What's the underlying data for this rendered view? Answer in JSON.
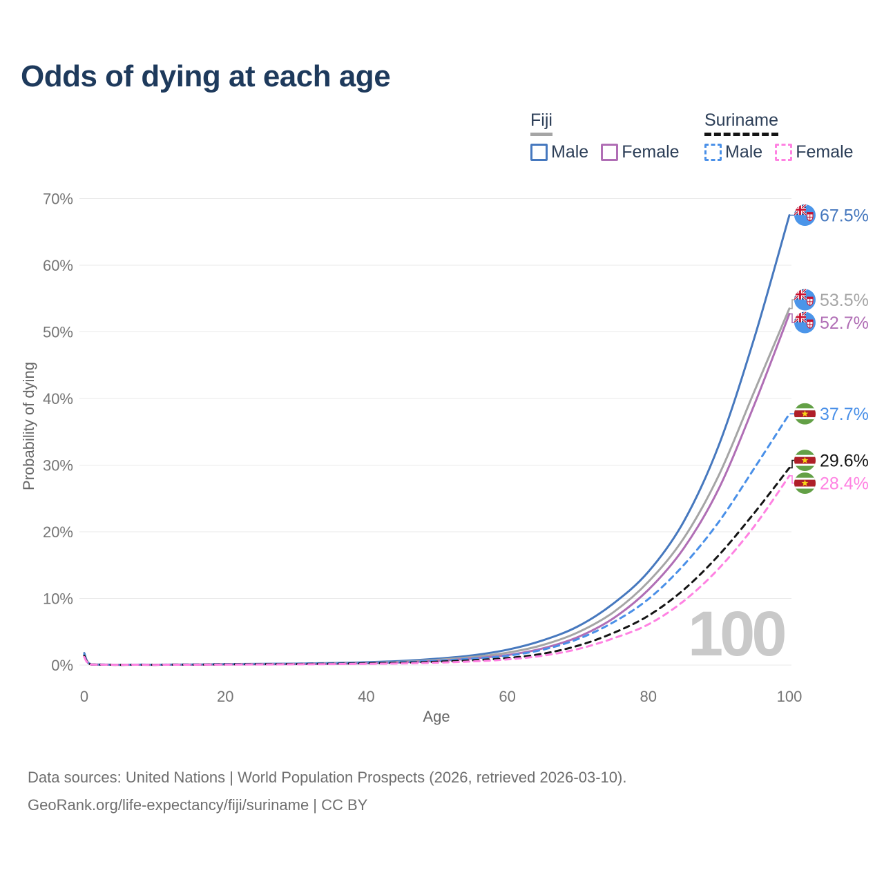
{
  "title": "Odds of dying at each age",
  "legend": {
    "groups": [
      {
        "name": "Fiji",
        "line_style": "solid",
        "line_color": "#A5A5A5",
        "items": [
          {
            "label": "Male",
            "color": "#4678BE",
            "style": "solid"
          },
          {
            "label": "Female",
            "color": "#B06EB5",
            "style": "solid"
          }
        ]
      },
      {
        "name": "Suriname",
        "line_style": "dashed",
        "line_color": "#141414",
        "items": [
          {
            "label": "Male",
            "color": "#4A90E8",
            "style": "dashed"
          },
          {
            "label": "Female",
            "color": "#FF82E2",
            "style": "dashed"
          }
        ]
      }
    ]
  },
  "axes": {
    "x_title": "Age",
    "y_title": "Probability of dying",
    "x_ticks": [
      {
        "value": 0,
        "label": "0"
      },
      {
        "value": 20,
        "label": "20"
      },
      {
        "value": 40,
        "label": "40"
      },
      {
        "value": 60,
        "label": "60"
      },
      {
        "value": 80,
        "label": "80"
      },
      {
        "value": 100,
        "label": "100"
      }
    ],
    "y_ticks": [
      {
        "value": 0,
        "label": "0%"
      },
      {
        "value": 10,
        "label": "10%"
      },
      {
        "value": 20,
        "label": "20%"
      },
      {
        "value": 30,
        "label": "30%"
      },
      {
        "value": 40,
        "label": "40%"
      },
      {
        "value": 50,
        "label": "50%"
      },
      {
        "value": 60,
        "label": "60%"
      },
      {
        "value": 70,
        "label": "70%"
      }
    ]
  },
  "watermark": "100",
  "footer": {
    "line1": "Data sources: United Nations | World Population Prospects (2026, retrieved 2026-03-10).",
    "line2": "GeoRank.org/life-expectancy/fiji/suriname | CC BY"
  },
  "chart_data": {
    "type": "line",
    "title": "Odds of dying at each age",
    "xlabel": "Age",
    "ylabel": "Probability of dying",
    "xlim": [
      0,
      100
    ],
    "ylim": [
      0,
      70
    ],
    "grid": "horizontal",
    "legend_position": "top-right",
    "series": [
      {
        "name": "Fiji Male",
        "country": "Fiji",
        "sex": "Male",
        "flag": "fiji",
        "color": "#4678BE",
        "dash": "solid",
        "end_label": "67.5%",
        "end_value": 67.5,
        "points": [
          [
            0,
            1.8
          ],
          [
            1,
            0.1
          ],
          [
            5,
            0.05
          ],
          [
            10,
            0.05
          ],
          [
            15,
            0.08
          ],
          [
            20,
            0.15
          ],
          [
            25,
            0.18
          ],
          [
            30,
            0.22
          ],
          [
            35,
            0.3
          ],
          [
            40,
            0.42
          ],
          [
            45,
            0.62
          ],
          [
            50,
            0.95
          ],
          [
            55,
            1.45
          ],
          [
            60,
            2.3
          ],
          [
            65,
            3.7
          ],
          [
            70,
            5.8
          ],
          [
            75,
            9.2
          ],
          [
            80,
            14.0
          ],
          [
            85,
            21.5
          ],
          [
            90,
            33.0
          ],
          [
            95,
            49.0
          ],
          [
            100,
            67.5
          ]
        ]
      },
      {
        "name": "Fiji Both sexes",
        "country": "Fiji",
        "sex": "Both",
        "flag": "fiji",
        "color": "#A5A5A5",
        "dash": "solid",
        "end_label": "53.5%",
        "end_value": 53.5,
        "points": [
          [
            0,
            1.6
          ],
          [
            1,
            0.09
          ],
          [
            5,
            0.04
          ],
          [
            10,
            0.04
          ],
          [
            15,
            0.07
          ],
          [
            20,
            0.12
          ],
          [
            25,
            0.15
          ],
          [
            30,
            0.18
          ],
          [
            35,
            0.24
          ],
          [
            40,
            0.34
          ],
          [
            45,
            0.5
          ],
          [
            50,
            0.78
          ],
          [
            55,
            1.2
          ],
          [
            60,
            1.85
          ],
          [
            65,
            3.0
          ],
          [
            70,
            4.9
          ],
          [
            75,
            7.9
          ],
          [
            80,
            12.5
          ],
          [
            85,
            19.0
          ],
          [
            90,
            28.5
          ],
          [
            95,
            41.0
          ],
          [
            100,
            53.5
          ]
        ]
      },
      {
        "name": "Fiji Female",
        "country": "Fiji",
        "sex": "Female",
        "flag": "fiji",
        "color": "#B06EB5",
        "dash": "solid",
        "end_label": "52.7%",
        "end_value": 52.7,
        "points": [
          [
            0,
            1.4
          ],
          [
            1,
            0.08
          ],
          [
            5,
            0.04
          ],
          [
            10,
            0.04
          ],
          [
            15,
            0.05
          ],
          [
            20,
            0.09
          ],
          [
            25,
            0.11
          ],
          [
            30,
            0.14
          ],
          [
            35,
            0.19
          ],
          [
            40,
            0.27
          ],
          [
            45,
            0.4
          ],
          [
            50,
            0.62
          ],
          [
            55,
            0.98
          ],
          [
            60,
            1.5
          ],
          [
            65,
            2.5
          ],
          [
            70,
            4.2
          ],
          [
            75,
            7.0
          ],
          [
            80,
            11.3
          ],
          [
            85,
            17.5
          ],
          [
            90,
            26.5
          ],
          [
            95,
            39.0
          ],
          [
            100,
            52.7
          ]
        ]
      },
      {
        "name": "Suriname Male",
        "country": "Suriname",
        "sex": "Male",
        "flag": "suriname",
        "color": "#4A90E8",
        "dash": "dashed",
        "end_label": "37.7%",
        "end_value": 37.7,
        "points": [
          [
            0,
            1.6
          ],
          [
            1,
            0.09
          ],
          [
            5,
            0.04
          ],
          [
            10,
            0.05
          ],
          [
            15,
            0.08
          ],
          [
            20,
            0.13
          ],
          [
            25,
            0.16
          ],
          [
            30,
            0.2
          ],
          [
            35,
            0.26
          ],
          [
            40,
            0.33
          ],
          [
            45,
            0.45
          ],
          [
            50,
            0.65
          ],
          [
            55,
            0.95
          ],
          [
            60,
            1.4
          ],
          [
            65,
            2.3
          ],
          [
            70,
            3.9
          ],
          [
            75,
            6.4
          ],
          [
            80,
            9.9
          ],
          [
            85,
            15.0
          ],
          [
            90,
            21.5
          ],
          [
            95,
            29.5
          ],
          [
            100,
            37.7
          ]
        ]
      },
      {
        "name": "Suriname Both sexes",
        "country": "Suriname",
        "sex": "Both",
        "flag": "suriname",
        "color": "#141414",
        "dash": "dashed",
        "end_label": "29.6%",
        "end_value": 29.6,
        "points": [
          [
            0,
            1.4
          ],
          [
            1,
            0.08
          ],
          [
            5,
            0.035
          ],
          [
            10,
            0.04
          ],
          [
            15,
            0.06
          ],
          [
            20,
            0.1
          ],
          [
            25,
            0.13
          ],
          [
            30,
            0.16
          ],
          [
            35,
            0.2
          ],
          [
            40,
            0.26
          ],
          [
            45,
            0.35
          ],
          [
            50,
            0.5
          ],
          [
            55,
            0.72
          ],
          [
            60,
            1.05
          ],
          [
            65,
            1.7
          ],
          [
            70,
            2.9
          ],
          [
            75,
            4.8
          ],
          [
            80,
            7.4
          ],
          [
            85,
            11.3
          ],
          [
            90,
            16.5
          ],
          [
            95,
            22.8
          ],
          [
            100,
            29.6
          ]
        ]
      },
      {
        "name": "Suriname Female",
        "country": "Suriname",
        "sex": "Female",
        "flag": "suriname",
        "color": "#FF82E2",
        "dash": "dashed",
        "end_label": "28.4%",
        "end_value": 28.4,
        "points": [
          [
            0,
            1.2
          ],
          [
            1,
            0.07
          ],
          [
            5,
            0.03
          ],
          [
            10,
            0.03
          ],
          [
            15,
            0.05
          ],
          [
            20,
            0.07
          ],
          [
            25,
            0.09
          ],
          [
            30,
            0.11
          ],
          [
            35,
            0.14
          ],
          [
            40,
            0.18
          ],
          [
            45,
            0.25
          ],
          [
            50,
            0.36
          ],
          [
            55,
            0.55
          ],
          [
            60,
            0.85
          ],
          [
            65,
            1.4
          ],
          [
            70,
            2.4
          ],
          [
            75,
            4.0
          ],
          [
            80,
            6.1
          ],
          [
            85,
            9.6
          ],
          [
            90,
            14.5
          ],
          [
            95,
            20.8
          ],
          [
            100,
            28.4
          ]
        ]
      }
    ]
  }
}
